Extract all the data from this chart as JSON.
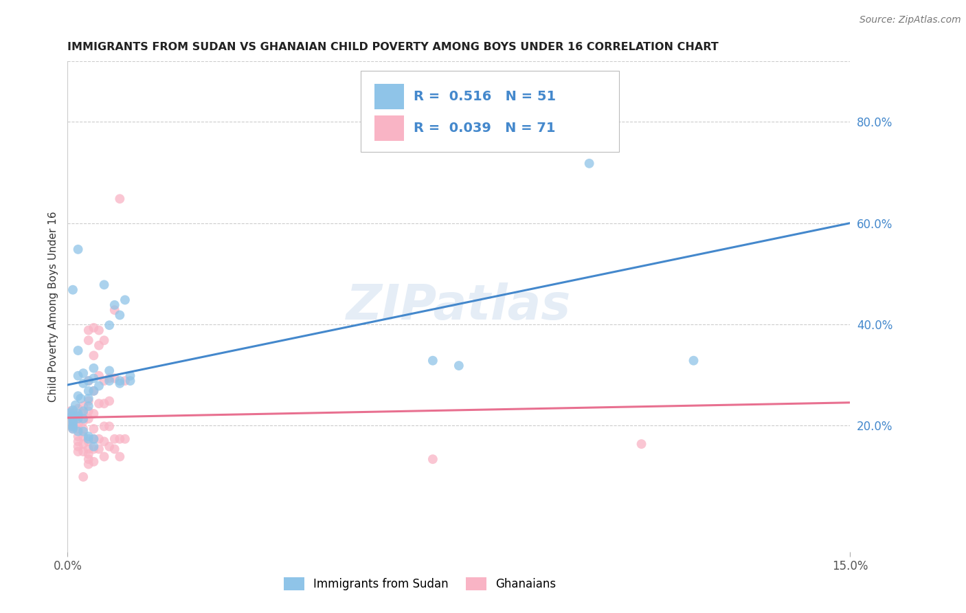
{
  "title": "IMMIGRANTS FROM SUDAN VS GHANAIAN CHILD POVERTY AMONG BOYS UNDER 16 CORRELATION CHART",
  "source": "Source: ZipAtlas.com",
  "ylabel_label": "Child Poverty Among Boys Under 16",
  "xlim": [
    0.0,
    0.15
  ],
  "ylim": [
    -0.05,
    0.92
  ],
  "legend_bottom": [
    "Immigrants from Sudan",
    "Ghanaians"
  ],
  "R_blue": 0.516,
  "N_blue": 51,
  "R_pink": 0.039,
  "N_pink": 71,
  "color_blue": "#8fc4e8",
  "color_pink": "#f9b4c5",
  "line_blue": "#4488cc",
  "line_pink": "#e87090",
  "watermark": "ZIPatlas",
  "background_color": "#ffffff",
  "ytick_vals": [
    0.2,
    0.4,
    0.6,
    0.8
  ],
  "ytick_labels": [
    "20.0%",
    "40.0%",
    "60.0%",
    "80.0%"
  ],
  "xtick_vals": [
    0.0,
    0.15
  ],
  "xtick_labels": [
    "0.0%",
    "15.0%"
  ],
  "blue_scatter": [
    [
      0.0005,
      0.225
    ],
    [
      0.0008,
      0.218
    ],
    [
      0.001,
      0.212
    ],
    [
      0.001,
      0.207
    ],
    [
      0.001,
      0.201
    ],
    [
      0.001,
      0.197
    ],
    [
      0.001,
      0.193
    ],
    [
      0.001,
      0.23
    ],
    [
      0.0015,
      0.24
    ],
    [
      0.002,
      0.223
    ],
    [
      0.002,
      0.218
    ],
    [
      0.002,
      0.213
    ],
    [
      0.002,
      0.298
    ],
    [
      0.002,
      0.258
    ],
    [
      0.002,
      0.348
    ],
    [
      0.002,
      0.188
    ],
    [
      0.003,
      0.303
    ],
    [
      0.003,
      0.283
    ],
    [
      0.0025,
      0.253
    ],
    [
      0.003,
      0.228
    ],
    [
      0.003,
      0.213
    ],
    [
      0.003,
      0.188
    ],
    [
      0.004,
      0.288
    ],
    [
      0.004,
      0.268
    ],
    [
      0.004,
      0.253
    ],
    [
      0.004,
      0.238
    ],
    [
      0.004,
      0.178
    ],
    [
      0.004,
      0.173
    ],
    [
      0.005,
      0.313
    ],
    [
      0.005,
      0.293
    ],
    [
      0.005,
      0.173
    ],
    [
      0.005,
      0.158
    ],
    [
      0.006,
      0.278
    ],
    [
      0.007,
      0.478
    ],
    [
      0.008,
      0.398
    ],
    [
      0.008,
      0.308
    ],
    [
      0.008,
      0.288
    ],
    [
      0.009,
      0.438
    ],
    [
      0.01,
      0.418
    ],
    [
      0.01,
      0.288
    ],
    [
      0.01,
      0.283
    ],
    [
      0.011,
      0.448
    ],
    [
      0.012,
      0.298
    ],
    [
      0.012,
      0.288
    ],
    [
      0.07,
      0.328
    ],
    [
      0.075,
      0.318
    ],
    [
      0.1,
      0.718
    ],
    [
      0.12,
      0.328
    ],
    [
      0.001,
      0.468
    ],
    [
      0.002,
      0.548
    ],
    [
      0.005,
      0.268
    ]
  ],
  "pink_scatter": [
    [
      0.0005,
      0.228
    ],
    [
      0.001,
      0.223
    ],
    [
      0.001,
      0.218
    ],
    [
      0.001,
      0.213
    ],
    [
      0.001,
      0.208
    ],
    [
      0.001,
      0.203
    ],
    [
      0.001,
      0.198
    ],
    [
      0.001,
      0.193
    ],
    [
      0.002,
      0.233
    ],
    [
      0.002,
      0.218
    ],
    [
      0.002,
      0.213
    ],
    [
      0.002,
      0.203
    ],
    [
      0.002,
      0.193
    ],
    [
      0.002,
      0.178
    ],
    [
      0.002,
      0.168
    ],
    [
      0.002,
      0.158
    ],
    [
      0.002,
      0.148
    ],
    [
      0.003,
      0.238
    ],
    [
      0.003,
      0.223
    ],
    [
      0.003,
      0.208
    ],
    [
      0.003,
      0.193
    ],
    [
      0.003,
      0.178
    ],
    [
      0.003,
      0.163
    ],
    [
      0.003,
      0.148
    ],
    [
      0.004,
      0.388
    ],
    [
      0.004,
      0.368
    ],
    [
      0.004,
      0.288
    ],
    [
      0.004,
      0.248
    ],
    [
      0.004,
      0.228
    ],
    [
      0.004,
      0.213
    ],
    [
      0.004,
      0.168
    ],
    [
      0.004,
      0.153
    ],
    [
      0.004,
      0.143
    ],
    [
      0.004,
      0.133
    ],
    [
      0.004,
      0.123
    ],
    [
      0.005,
      0.393
    ],
    [
      0.005,
      0.338
    ],
    [
      0.005,
      0.268
    ],
    [
      0.005,
      0.223
    ],
    [
      0.005,
      0.193
    ],
    [
      0.005,
      0.173
    ],
    [
      0.005,
      0.153
    ],
    [
      0.005,
      0.128
    ],
    [
      0.006,
      0.388
    ],
    [
      0.006,
      0.358
    ],
    [
      0.006,
      0.298
    ],
    [
      0.006,
      0.243
    ],
    [
      0.006,
      0.173
    ],
    [
      0.006,
      0.153
    ],
    [
      0.007,
      0.368
    ],
    [
      0.007,
      0.288
    ],
    [
      0.007,
      0.243
    ],
    [
      0.007,
      0.198
    ],
    [
      0.007,
      0.168
    ],
    [
      0.007,
      0.138
    ],
    [
      0.008,
      0.293
    ],
    [
      0.008,
      0.248
    ],
    [
      0.008,
      0.198
    ],
    [
      0.008,
      0.158
    ],
    [
      0.009,
      0.428
    ],
    [
      0.009,
      0.293
    ],
    [
      0.009,
      0.173
    ],
    [
      0.009,
      0.153
    ],
    [
      0.01,
      0.173
    ],
    [
      0.01,
      0.138
    ],
    [
      0.01,
      0.648
    ],
    [
      0.011,
      0.288
    ],
    [
      0.011,
      0.173
    ],
    [
      0.11,
      0.163
    ],
    [
      0.07,
      0.133
    ],
    [
      0.003,
      0.098
    ]
  ],
  "blue_line_x": [
    0.0,
    0.15
  ],
  "blue_line_y": [
    0.28,
    0.6
  ],
  "pink_line_x": [
    0.0,
    0.15
  ],
  "pink_line_y": [
    0.215,
    0.245
  ]
}
